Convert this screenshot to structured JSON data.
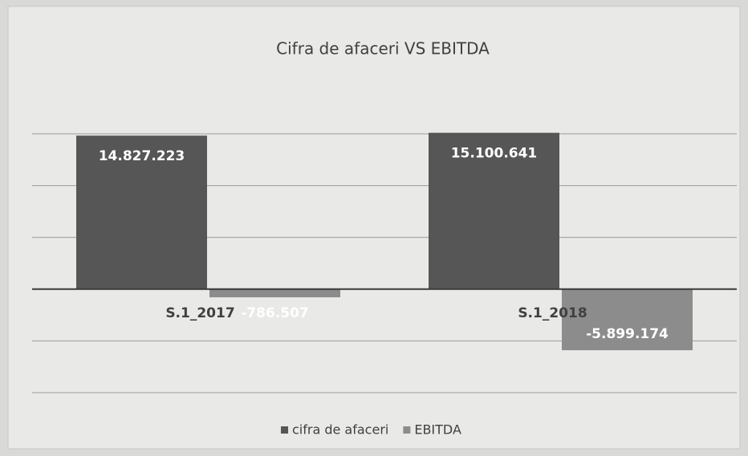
{
  "chart_data": {
    "type": "bar",
    "title": "Cifra de afaceri VS EBITDA",
    "categories": [
      "S.1_2017",
      "S.1_2018"
    ],
    "series": [
      {
        "name": "cifra de afaceri",
        "color": "#565656",
        "values": [
          14827223,
          15100641
        ],
        "value_labels": [
          "14.827.223",
          "15.100.641"
        ]
      },
      {
        "name": "EBITDA",
        "color": "#8c8c8c",
        "values": [
          -786507,
          -5899174
        ],
        "value_labels": [
          "-786.507",
          "-5.899.174"
        ]
      }
    ],
    "ylim": [
      -10000000,
      15000000
    ],
    "yticks": [
      -10000000,
      -5000000,
      0,
      5000000,
      10000000,
      15000000
    ],
    "grid": true
  }
}
